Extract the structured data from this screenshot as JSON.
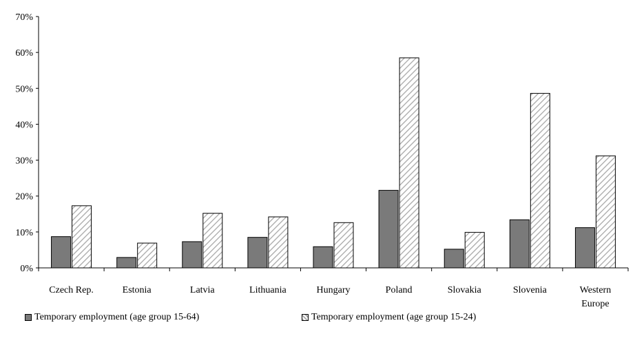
{
  "chart_data": {
    "type": "bar",
    "categories": [
      "Czech Rep.",
      "Estonia",
      "Latvia",
      "Lithuania",
      "Hungary",
      "Poland",
      "Slovakia",
      "Slovenia",
      "Western Europe"
    ],
    "series": [
      {
        "name": "Temporary employment (age group 15-64)",
        "values": [
          8.7,
          2.9,
          7.3,
          8.5,
          5.9,
          21.6,
          5.2,
          13.4,
          11.2
        ],
        "color": "#7a7a7a",
        "pattern": "solid"
      },
      {
        "name": "Temporary employment (age group 15-24)",
        "values": [
          17.3,
          6.9,
          15.2,
          14.2,
          12.6,
          58.5,
          9.9,
          48.6,
          31.2
        ],
        "color": "#ffffff",
        "pattern": "diagonal-hatch"
      }
    ],
    "title": "",
    "xlabel": "",
    "ylabel": "",
    "ylim": [
      0,
      70
    ],
    "yticks": [
      0,
      10,
      20,
      30,
      40,
      50,
      60,
      70
    ],
    "ytick_labels": [
      "0%",
      "10%",
      "20%",
      "30%",
      "40%",
      "50%",
      "60%",
      "70%"
    ],
    "grid": false,
    "legend_position": "bottom"
  }
}
